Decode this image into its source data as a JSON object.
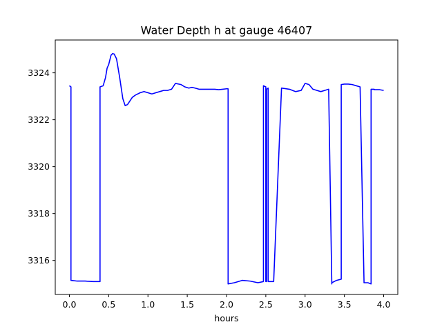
{
  "chart_data": {
    "type": "line",
    "title": "Water Depth h at gauge 46407",
    "xlabel": "hours",
    "ylabel": "",
    "xlim": [
      -0.18,
      4.18
    ],
    "ylim": [
      3314.55,
      3325.4
    ],
    "x_ticks": [
      0.0,
      0.5,
      1.0,
      1.5,
      2.0,
      2.5,
      3.0,
      3.5,
      4.0
    ],
    "x_tick_labels": [
      "0.0",
      "0.5",
      "1.0",
      "1.5",
      "2.0",
      "2.5",
      "3.0",
      "3.5",
      "4.0"
    ],
    "y_ticks": [
      3316,
      3318,
      3320,
      3322,
      3324
    ],
    "y_tick_labels": [
      "3316",
      "3318",
      "3320",
      "3322",
      "3324"
    ],
    "grid": false,
    "series": [
      {
        "color": "#0000ff",
        "x": [
          0.0,
          0.02,
          0.02,
          0.1,
          0.2,
          0.3,
          0.39,
          0.39,
          0.43,
          0.46,
          0.48,
          0.5,
          0.53,
          0.55,
          0.57,
          0.6,
          0.64,
          0.68,
          0.71,
          0.74,
          0.77,
          0.8,
          0.84,
          0.9,
          0.95,
          1.0,
          1.05,
          1.1,
          1.15,
          1.2,
          1.25,
          1.3,
          1.35,
          1.42,
          1.47,
          1.52,
          1.56,
          1.6,
          1.65,
          1.7,
          1.75,
          1.8,
          1.85,
          1.9,
          1.95,
          2.0,
          2.02,
          2.02,
          2.1,
          2.2,
          2.3,
          2.4,
          2.47,
          2.47,
          2.5,
          2.5,
          2.51,
          2.51,
          2.53,
          2.53,
          2.6,
          2.7,
          2.8,
          2.88,
          2.95,
          3.0,
          3.05,
          3.1,
          3.15,
          3.2,
          3.25,
          3.3,
          3.34,
          3.34,
          3.4,
          3.46,
          3.46,
          3.5,
          3.55,
          3.6,
          3.65,
          3.7,
          3.75,
          3.75,
          3.8,
          3.84,
          3.84,
          3.88,
          3.88,
          3.9,
          3.95,
          4.0
        ],
        "y": [
          3323.45,
          3323.4,
          3315.15,
          3315.12,
          3315.12,
          3315.1,
          3315.1,
          3323.4,
          3323.45,
          3323.8,
          3324.2,
          3324.35,
          3324.75,
          3324.82,
          3324.8,
          3324.6,
          3323.8,
          3322.9,
          3322.6,
          3322.65,
          3322.8,
          3322.95,
          3323.05,
          3323.15,
          3323.2,
          3323.15,
          3323.1,
          3323.15,
          3323.2,
          3323.25,
          3323.25,
          3323.3,
          3323.55,
          3323.5,
          3323.4,
          3323.35,
          3323.38,
          3323.35,
          3323.3,
          3323.3,
          3323.3,
          3323.3,
          3323.3,
          3323.28,
          3323.3,
          3323.32,
          3323.32,
          3315.0,
          3315.05,
          3315.15,
          3315.12,
          3315.05,
          3315.1,
          3323.45,
          3323.4,
          3315.1,
          3315.1,
          3323.3,
          3323.35,
          3315.1,
          3315.1,
          3323.35,
          3323.3,
          3323.2,
          3323.25,
          3323.55,
          3323.5,
          3323.3,
          3323.25,
          3323.2,
          3323.25,
          3323.3,
          3315.0,
          3315.05,
          3315.15,
          3315.2,
          3323.5,
          3323.52,
          3323.52,
          3323.5,
          3323.45,
          3323.4,
          3315.1,
          3315.05,
          3315.05,
          3315.0,
          3323.3,
          3323.3,
          3323.28,
          3323.28,
          3323.28,
          3323.25
        ]
      }
    ]
  }
}
